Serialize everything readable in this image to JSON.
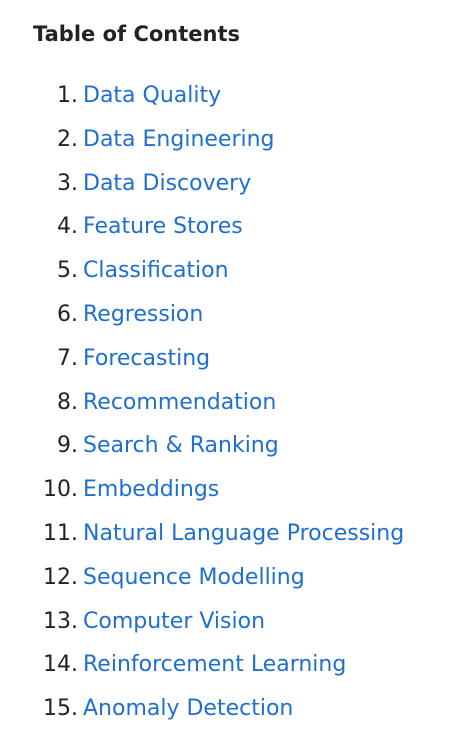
{
  "toc": {
    "title": "Table of Contents",
    "items": [
      {
        "number": "1.",
        "label": "Data Quality"
      },
      {
        "number": "2.",
        "label": "Data Engineering"
      },
      {
        "number": "3.",
        "label": "Data Discovery"
      },
      {
        "number": "4.",
        "label": "Feature Stores"
      },
      {
        "number": "5.",
        "label": "Classification"
      },
      {
        "number": "6.",
        "label": "Regression"
      },
      {
        "number": "7.",
        "label": "Forecasting"
      },
      {
        "number": "8.",
        "label": "Recommendation"
      },
      {
        "number": "9.",
        "label": "Search & Ranking"
      },
      {
        "number": "10.",
        "label": "Embeddings"
      },
      {
        "number": "11.",
        "label": "Natural Language Processing"
      },
      {
        "number": "12.",
        "label": "Sequence Modelling"
      },
      {
        "number": "13.",
        "label": "Computer Vision"
      },
      {
        "number": "14.",
        "label": "Reinforcement Learning"
      },
      {
        "number": "15.",
        "label": "Anomaly Detection"
      }
    ]
  }
}
